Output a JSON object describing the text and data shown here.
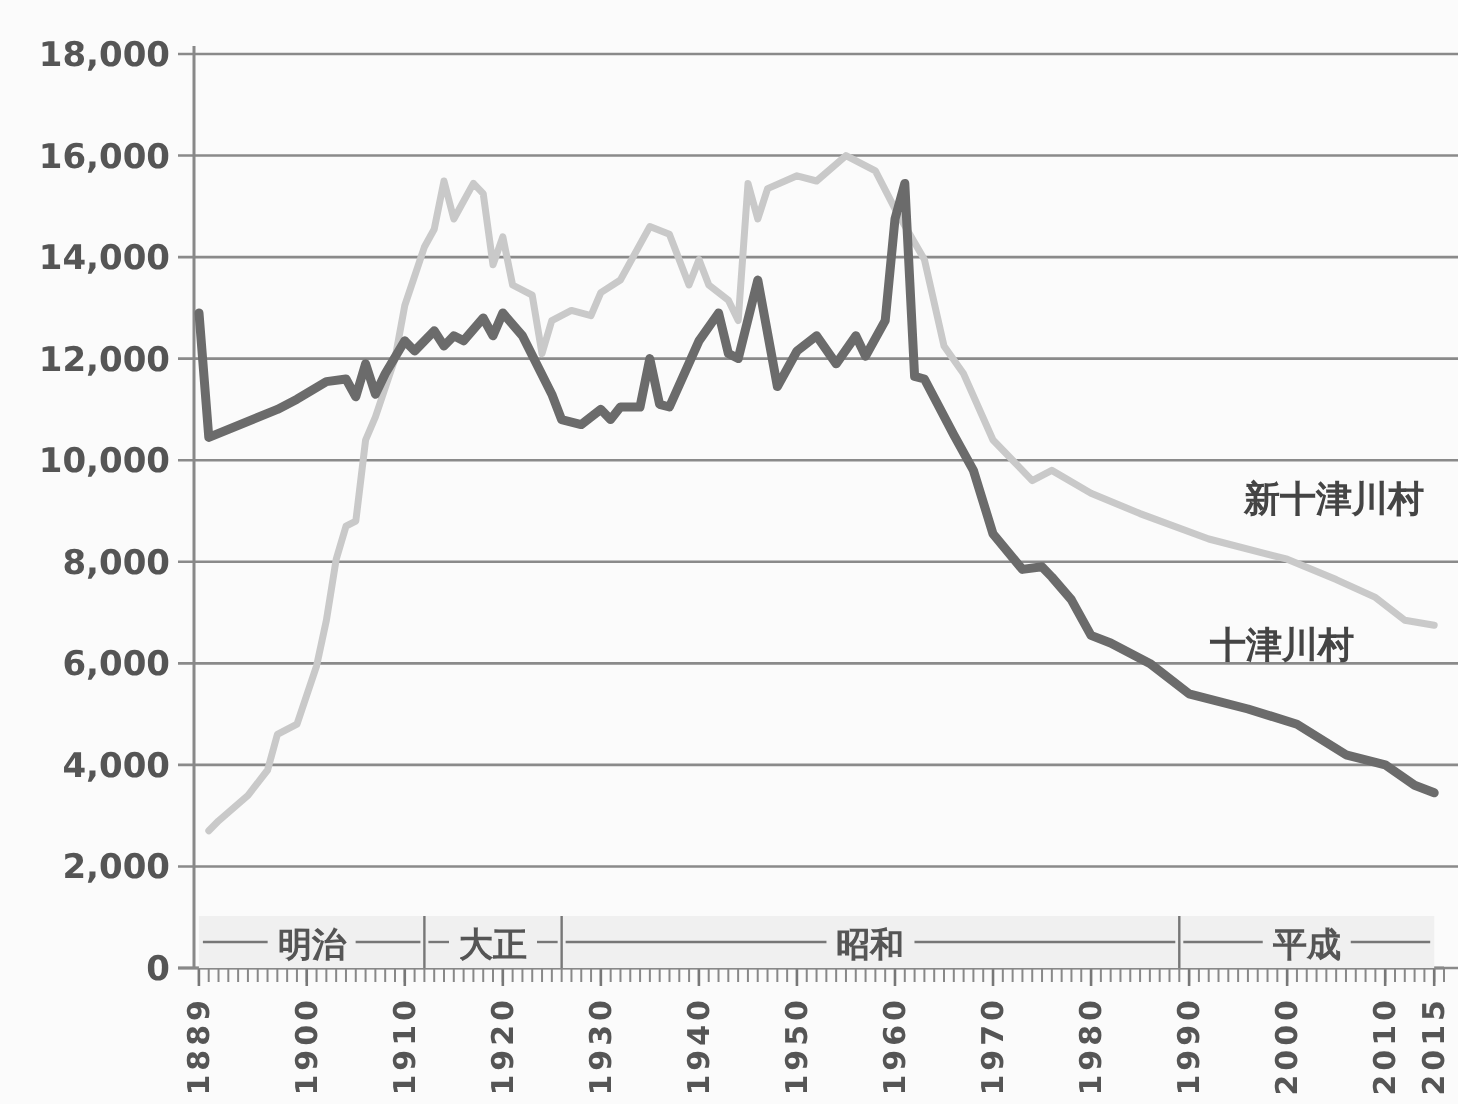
{
  "chart_data": {
    "type": "line",
    "xlim": [
      1888.5,
      2016
    ],
    "ylim": [
      0,
      18000
    ],
    "xticks": [
      1889,
      1900,
      1910,
      1920,
      1930,
      1940,
      1950,
      1960,
      1970,
      1980,
      1990,
      2000,
      2010,
      2015
    ],
    "yticks": [
      {
        "value": 0,
        "label": "0"
      },
      {
        "value": 2000,
        "label": "2,000"
      },
      {
        "value": 4000,
        "label": "4,000"
      },
      {
        "value": 6000,
        "label": "6,000"
      },
      {
        "value": 8000,
        "label": "8,000"
      },
      {
        "value": 10000,
        "label": "10,000"
      },
      {
        "value": 12000,
        "label": "12,000"
      },
      {
        "value": 14000,
        "label": "14,000"
      },
      {
        "value": 16000,
        "label": "16,000"
      },
      {
        "value": 18000,
        "label": "18,000"
      }
    ],
    "grid": "y",
    "legend": false,
    "marker": "none",
    "line_style": "solid",
    "bands": [
      {
        "axis": "x",
        "from": 1889,
        "to": 1912,
        "label": "明治"
      },
      {
        "axis": "x",
        "from": 1912,
        "to": 1926,
        "label": "大正"
      },
      {
        "axis": "x",
        "from": 1926,
        "to": 1989,
        "label": "昭和"
      },
      {
        "axis": "x",
        "from": 1989,
        "to": 2015,
        "label": "平成"
      }
    ],
    "series": [
      {
        "name": "新十津川村",
        "color": "#c9c9c9",
        "x": [
          1890,
          1891,
          1894,
          1896,
          1897,
          1899,
          1901,
          1902,
          1903,
          1904,
          1905,
          1906,
          1907,
          1909,
          1910,
          1912,
          1913,
          1914,
          1915,
          1917,
          1918,
          1919,
          1920,
          1921,
          1923,
          1924,
          1925,
          1927,
          1929,
          1930,
          1932,
          1935,
          1937,
          1939,
          1940,
          1941,
          1943,
          1944,
          1945,
          1946,
          1947,
          1950,
          1952,
          1955,
          1958,
          1960,
          1963,
          1965,
          1967,
          1970,
          1972,
          1974,
          1976,
          1980,
          1985,
          1992,
          2000,
          2005,
          2009,
          2012,
          2015
        ],
        "values": [
          2700,
          2900,
          3400,
          3900,
          4600,
          4800,
          5950,
          6850,
          8050,
          8700,
          8800,
          10400,
          10850,
          12000,
          13050,
          14200,
          14550,
          15500,
          14750,
          15450,
          15250,
          13850,
          14400,
          13450,
          13250,
          12100,
          12750,
          12950,
          12850,
          13300,
          13550,
          14600,
          14450,
          13450,
          13950,
          13450,
          13150,
          12750,
          15450,
          14750,
          15350,
          15600,
          15500,
          16000,
          15700,
          14950,
          13950,
          12250,
          11700,
          10400,
          10000,
          9600,
          9800,
          9350,
          8950,
          8450,
          8050,
          7650,
          7300,
          6850,
          6750
        ]
      },
      {
        "name": "十津川村",
        "color": "#6b6b6b",
        "x": [
          1889,
          1890,
          1897,
          1899,
          1902,
          1904,
          1905,
          1906,
          1907,
          1908,
          1910,
          1911,
          1913,
          1914,
          1915,
          1916,
          1918,
          1919,
          1920,
          1922,
          1925,
          1926,
          1928,
          1930,
          1931,
          1932,
          1934,
          1935,
          1936,
          1937,
          1940,
          1942,
          1943,
          1944,
          1946,
          1948,
          1950,
          1952,
          1954,
          1956,
          1957,
          1959,
          1960,
          1961,
          1962,
          1963,
          1966,
          1968,
          1970,
          1973,
          1975,
          1976,
          1978,
          1980,
          1982,
          1986,
          1990,
          1996,
          2001,
          2006,
          2010,
          2013,
          2015
        ],
        "values": [
          12900,
          10450,
          11000,
          11200,
          11550,
          11600,
          11250,
          11900,
          11300,
          11700,
          12350,
          12150,
          12550,
          12250,
          12450,
          12350,
          12800,
          12450,
          12900,
          12450,
          11300,
          10800,
          10700,
          11000,
          10800,
          11050,
          11050,
          12000,
          11100,
          11050,
          12350,
          12900,
          12100,
          12000,
          13550,
          11450,
          12150,
          12450,
          11900,
          12450,
          12050,
          12750,
          14750,
          15450,
          11650,
          11600,
          10500,
          9800,
          8550,
          7850,
          7900,
          7700,
          7250,
          6550,
          6400,
          6000,
          5400,
          5100,
          4800,
          4200,
          4000,
          3600,
          3450
        ]
      }
    ]
  }
}
